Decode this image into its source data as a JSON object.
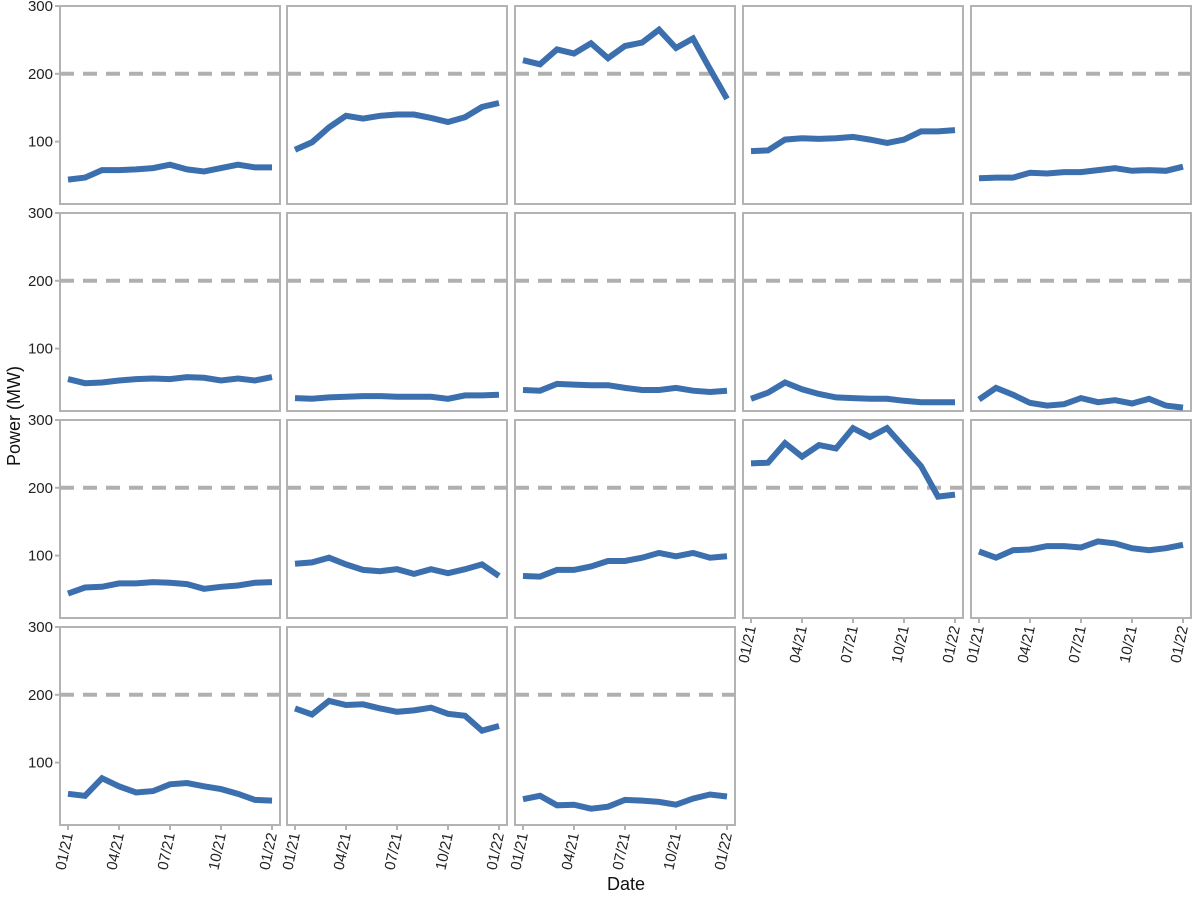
{
  "chart_data": {
    "type": "line",
    "layout": "small-multiples 4 rows x 5 columns, 18 panels",
    "xlabel": "Date",
    "ylabel": "Power (MW)",
    "x": [
      "2021-01",
      "2021-02",
      "2021-03",
      "2021-04",
      "2021-05",
      "2021-06",
      "2021-07",
      "2021-08",
      "2021-09",
      "2021-10",
      "2021-11",
      "2021-12",
      "2022-01"
    ],
    "x_tick_labels": [
      "01/21",
      "04/21",
      "07/21",
      "10/21",
      "01/22"
    ],
    "x_tick_values": [
      "2021-01",
      "2021-04",
      "2021-07",
      "2021-10",
      "2022-01"
    ],
    "y_ticks": [
      100,
      200,
      300
    ],
    "ylim": [
      8,
      300
    ],
    "reference_line": {
      "y": 200,
      "style": "dashed",
      "color": "#b0b0b0"
    },
    "line_color": "#3b6fad",
    "grid": false,
    "panels": [
      {
        "values": [
          44,
          47,
          58,
          58,
          59,
          61,
          66,
          59,
          56,
          61,
          66,
          62,
          62
        ]
      },
      {
        "values": [
          88,
          99,
          121,
          138,
          134,
          138,
          140,
          140,
          135,
          129,
          136,
          151,
          157
        ]
      },
      {
        "values": [
          220,
          214,
          236,
          230,
          245,
          223,
          241,
          246,
          265,
          238,
          252,
          207,
          163
        ]
      },
      {
        "values": [
          86,
          87,
          103,
          105,
          104,
          105,
          107,
          103,
          98,
          103,
          115,
          115,
          117
        ]
      },
      {
        "values": [
          46,
          47,
          47,
          54,
          53,
          55,
          55,
          58,
          61,
          57,
          58,
          57,
          63
        ]
      },
      {
        "values": [
          55,
          49,
          50,
          53,
          55,
          56,
          55,
          58,
          57,
          53,
          56,
          53,
          58
        ]
      },
      {
        "values": [
          27,
          26,
          28,
          29,
          30,
          30,
          29,
          29,
          29,
          26,
          31,
          31,
          32
        ]
      },
      {
        "values": [
          39,
          38,
          48,
          47,
          46,
          46,
          42,
          39,
          39,
          42,
          38,
          36,
          38
        ]
      },
      {
        "values": [
          26,
          35,
          50,
          40,
          33,
          28,
          27,
          26,
          26,
          23,
          21,
          21,
          21
        ]
      },
      {
        "values": [
          25,
          42,
          32,
          20,
          16,
          18,
          27,
          21,
          24,
          19,
          26,
          16,
          13
        ]
      },
      {
        "values": [
          44,
          53,
          54,
          59,
          59,
          61,
          60,
          58,
          51,
          54,
          56,
          60,
          61
        ]
      },
      {
        "values": [
          88,
          90,
          97,
          87,
          79,
          77,
          80,
          73,
          80,
          74,
          80,
          87,
          70
        ]
      },
      {
        "values": [
          70,
          69,
          79,
          79,
          84,
          92,
          92,
          97,
          104,
          99,
          104,
          97,
          99
        ]
      },
      {
        "values": [
          236,
          237,
          266,
          246,
          263,
          258,
          288,
          275,
          288,
          260,
          232,
          187,
          190
        ]
      },
      {
        "values": [
          106,
          97,
          108,
          109,
          114,
          114,
          112,
          121,
          118,
          111,
          108,
          111,
          116
        ]
      },
      {
        "values": [
          54,
          51,
          77,
          65,
          56,
          58,
          68,
          70,
          65,
          61,
          54,
          45,
          44
        ]
      },
      {
        "values": [
          180,
          171,
          191,
          185,
          186,
          180,
          175,
          177,
          181,
          172,
          169,
          147,
          154
        ]
      },
      {
        "values": [
          46,
          51,
          37,
          38,
          32,
          35,
          45,
          44,
          42,
          38,
          47,
          53,
          50
        ]
      }
    ]
  }
}
